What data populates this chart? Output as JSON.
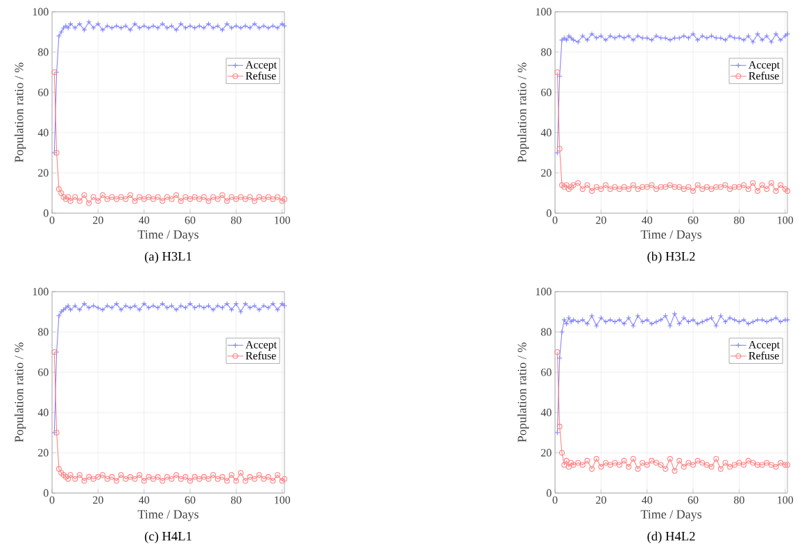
{
  "chart_data": [
    {
      "type": "line",
      "title": "(a) H3L1",
      "xlabel": "Time / Days",
      "ylabel": "Population ratio / %",
      "xlim": [
        0,
        101
      ],
      "ylim": [
        0,
        100
      ],
      "xticks": [
        0,
        20,
        40,
        60,
        80,
        100
      ],
      "yticks": [
        0,
        20,
        40,
        60,
        80,
        100
      ],
      "grid": true,
      "legend": "top right",
      "x": [
        1,
        2,
        3,
        4,
        5,
        6,
        7,
        8,
        10,
        12,
        14,
        16,
        18,
        20,
        22,
        24,
        26,
        28,
        30,
        32,
        34,
        36,
        38,
        40,
        42,
        44,
        46,
        48,
        50,
        52,
        54,
        56,
        58,
        60,
        62,
        64,
        66,
        68,
        70,
        72,
        74,
        76,
        78,
        80,
        82,
        84,
        86,
        88,
        90,
        92,
        94,
        96,
        98,
        100,
        101
      ],
      "series": [
        {
          "name": "Accept",
          "color": "#8080ff",
          "marker": "cross",
          "values": [
            30,
            70,
            88,
            90,
            92,
            93,
            92,
            94,
            92,
            94,
            91,
            95,
            92,
            94,
            91,
            93,
            92,
            93,
            92,
            93,
            91,
            94,
            92,
            93,
            92,
            93,
            92,
            94,
            92,
            93,
            91,
            94,
            92,
            93,
            92,
            93,
            92,
            94,
            92,
            93,
            91,
            94,
            92,
            93,
            92,
            93,
            92,
            94,
            92,
            93,
            92,
            93,
            92,
            94,
            93
          ]
        },
        {
          "name": "Refuse",
          "color": "#ff7f7f",
          "marker": "circle",
          "values": [
            70,
            30,
            12,
            10,
            8,
            7,
            8,
            6,
            8,
            6,
            9,
            5,
            8,
            6,
            9,
            7,
            8,
            7,
            8,
            7,
            9,
            6,
            8,
            7,
            8,
            7,
            8,
            6,
            8,
            7,
            9,
            6,
            8,
            7,
            8,
            7,
            8,
            6,
            8,
            7,
            9,
            6,
            8,
            7,
            8,
            7,
            8,
            6,
            8,
            7,
            8,
            7,
            8,
            6,
            7
          ]
        }
      ]
    },
    {
      "type": "line",
      "title": "(b) H3L2",
      "xlabel": "Time / Days",
      "ylabel": "Population ratio / %",
      "xlim": [
        0,
        101
      ],
      "ylim": [
        0,
        100
      ],
      "xticks": [
        0,
        20,
        40,
        60,
        80,
        100
      ],
      "yticks": [
        0,
        20,
        40,
        60,
        80,
        100
      ],
      "grid": true,
      "legend": "top right",
      "x": [
        1,
        2,
        3,
        4,
        5,
        6,
        7,
        8,
        10,
        12,
        14,
        16,
        18,
        20,
        22,
        24,
        26,
        28,
        30,
        32,
        34,
        36,
        38,
        40,
        42,
        44,
        46,
        48,
        50,
        52,
        54,
        56,
        58,
        60,
        62,
        64,
        66,
        68,
        70,
        72,
        74,
        76,
        78,
        80,
        82,
        84,
        86,
        88,
        90,
        92,
        94,
        96,
        98,
        100,
        101
      ],
      "series": [
        {
          "name": "Accept",
          "color": "#8080ff",
          "marker": "cross",
          "values": [
            30,
            68,
            86,
            87,
            86,
            88,
            87,
            86,
            85,
            88,
            86,
            89,
            87,
            88,
            86,
            88,
            87,
            88,
            87,
            88,
            86,
            88,
            87,
            87,
            86,
            88,
            87,
            87,
            86,
            87,
            87,
            88,
            87,
            89,
            86,
            88,
            87,
            88,
            87,
            87,
            86,
            88,
            87,
            87,
            86,
            88,
            85,
            89,
            86,
            88,
            85,
            89,
            86,
            88,
            89
          ]
        },
        {
          "name": "Refuse",
          "color": "#ff7f7f",
          "marker": "circle",
          "values": [
            70,
            32,
            14,
            13,
            14,
            12,
            13,
            14,
            15,
            12,
            14,
            11,
            13,
            12,
            14,
            12,
            13,
            12,
            13,
            12,
            14,
            12,
            13,
            13,
            14,
            12,
            13,
            13,
            14,
            13,
            13,
            12,
            13,
            11,
            14,
            12,
            13,
            12,
            13,
            13,
            14,
            12,
            13,
            13,
            14,
            12,
            15,
            11,
            14,
            12,
            15,
            11,
            14,
            12,
            11
          ]
        }
      ]
    },
    {
      "type": "line",
      "title": "(c) H4L1",
      "xlabel": "Time / Days",
      "ylabel": "Population ratio / %",
      "xlim": [
        0,
        101
      ],
      "ylim": [
        0,
        100
      ],
      "xticks": [
        0,
        20,
        40,
        60,
        80,
        100
      ],
      "yticks": [
        0,
        20,
        40,
        60,
        80,
        100
      ],
      "grid": true,
      "legend": "top right",
      "x": [
        1,
        2,
        3,
        4,
        5,
        6,
        7,
        8,
        10,
        12,
        14,
        16,
        18,
        20,
        22,
        24,
        26,
        28,
        30,
        32,
        34,
        36,
        38,
        40,
        42,
        44,
        46,
        48,
        50,
        52,
        54,
        56,
        58,
        60,
        62,
        64,
        66,
        68,
        70,
        72,
        74,
        76,
        78,
        80,
        82,
        84,
        86,
        88,
        90,
        92,
        94,
        96,
        98,
        100,
        101
      ],
      "series": [
        {
          "name": "Accept",
          "color": "#8080ff",
          "marker": "cross",
          "values": [
            30,
            70,
            88,
            90,
            91,
            92,
            93,
            91,
            93,
            91,
            94,
            92,
            93,
            92,
            91,
            93,
            92,
            94,
            91,
            93,
            92,
            93,
            91,
            94,
            92,
            93,
            92,
            94,
            92,
            93,
            91,
            93,
            92,
            94,
            92,
            93,
            92,
            93,
            91,
            93,
            92,
            94,
            91,
            94,
            90,
            94,
            92,
            93,
            91,
            93,
            92,
            94,
            91,
            94,
            93
          ]
        },
        {
          "name": "Refuse",
          "color": "#ff7f7f",
          "marker": "circle",
          "values": [
            70,
            30,
            12,
            10,
            9,
            8,
            7,
            9,
            7,
            9,
            6,
            8,
            7,
            8,
            9,
            7,
            8,
            6,
            9,
            7,
            8,
            7,
            9,
            6,
            8,
            7,
            8,
            6,
            8,
            7,
            9,
            7,
            8,
            6,
            8,
            7,
            8,
            7,
            9,
            7,
            8,
            6,
            9,
            6,
            10,
            6,
            8,
            7,
            9,
            7,
            8,
            6,
            9,
            6,
            7
          ]
        }
      ]
    },
    {
      "type": "line",
      "title": "(d) H4L2",
      "xlabel": "Time / Days",
      "ylabel": "Population ratio / %",
      "xlim": [
        0,
        101
      ],
      "ylim": [
        0,
        100
      ],
      "xticks": [
        0,
        20,
        40,
        60,
        80,
        100
      ],
      "yticks": [
        0,
        20,
        40,
        60,
        80,
        100
      ],
      "grid": true,
      "legend": "top right",
      "x": [
        1,
        2,
        3,
        4,
        5,
        6,
        7,
        8,
        10,
        12,
        14,
        16,
        18,
        20,
        22,
        24,
        26,
        28,
        30,
        32,
        34,
        36,
        38,
        40,
        42,
        44,
        46,
        48,
        50,
        52,
        54,
        56,
        58,
        60,
        62,
        64,
        66,
        68,
        70,
        72,
        74,
        76,
        78,
        80,
        82,
        84,
        86,
        88,
        90,
        92,
        94,
        96,
        98,
        100,
        101
      ],
      "series": [
        {
          "name": "Accept",
          "color": "#8080ff",
          "marker": "cross",
          "values": [
            30,
            67,
            80,
            86,
            84,
            87,
            85,
            86,
            85,
            86,
            84,
            88,
            83,
            87,
            85,
            86,
            85,
            86,
            84,
            87,
            83,
            88,
            85,
            86,
            84,
            85,
            86,
            88,
            83,
            89,
            84,
            87,
            85,
            86,
            84,
            85,
            86,
            87,
            83,
            88,
            85,
            87,
            86,
            85,
            86,
            84,
            85,
            86,
            86,
            85,
            86,
            87,
            85,
            86,
            86
          ]
        },
        {
          "name": "Refuse",
          "color": "#ff7f7f",
          "marker": "circle",
          "values": [
            70,
            33,
            20,
            14,
            16,
            13,
            15,
            14,
            15,
            14,
            16,
            12,
            17,
            13,
            15,
            14,
            15,
            14,
            16,
            13,
            17,
            12,
            15,
            14,
            16,
            15,
            14,
            12,
            17,
            11,
            16,
            13,
            15,
            14,
            16,
            15,
            14,
            13,
            17,
            12,
            15,
            13,
            14,
            15,
            14,
            16,
            15,
            14,
            14,
            15,
            14,
            13,
            15,
            14,
            14
          ]
        }
      ]
    }
  ]
}
